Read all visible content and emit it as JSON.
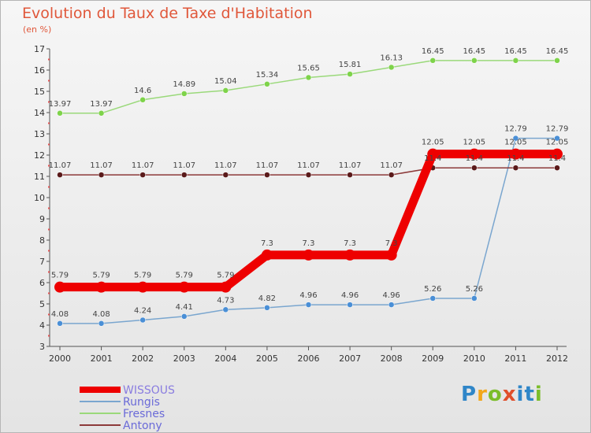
{
  "title": "Evolution du Taux de Taxe d'Habitation",
  "subtitle": "(en %)",
  "brand": {
    "text": "Proxiti",
    "colors": [
      "#2f86c8",
      "#f2a71b",
      "#7bbd2a",
      "#e04f2b",
      "#2f86c8",
      "#2f86c8",
      "#7bbd2a"
    ]
  },
  "chart_data": {
    "type": "line",
    "x": [
      "2000",
      "2001",
      "2002",
      "2003",
      "2004",
      "2005",
      "2006",
      "2007",
      "2008",
      "2009",
      "2010",
      "2011",
      "2012"
    ],
    "ylim": [
      3,
      17
    ],
    "yticks": [
      "3",
      "4",
      "5",
      "6",
      "7",
      "8",
      "9",
      "10",
      "11",
      "12",
      "13",
      "14",
      "15",
      "16",
      "17"
    ],
    "grid": false,
    "legend_position": "bottom-left",
    "series": [
      {
        "name": "WISSOUS",
        "color": "#ee0000",
        "width": 11,
        "marker": 7,
        "values": [
          5.79,
          5.79,
          5.79,
          5.79,
          5.79,
          7.3,
          7.3,
          7.3,
          7.3,
          12.05,
          12.05,
          12.05,
          12.05
        ],
        "labels": [
          "5.79",
          "5.79",
          "5.79",
          "5.79",
          "5.79",
          "7.3",
          "7.3",
          "7.3",
          "7.3",
          "12.05",
          "12.05",
          "12.05",
          "12.05"
        ]
      },
      {
        "name": "Rungis",
        "color": "#7aa6cf",
        "width": 1.5,
        "marker": 3.5,
        "marker_fill": "#4a8fd6",
        "values": [
          4.08,
          4.08,
          4.24,
          4.41,
          4.73,
          4.82,
          4.96,
          4.96,
          4.96,
          5.26,
          5.26,
          12.79,
          12.79
        ],
        "labels": [
          "4.08",
          "4.08",
          "4.24",
          "4.41",
          "4.73",
          "4.82",
          "4.96",
          "4.96",
          "4.96",
          "5.26",
          "5.26",
          "12.79",
          "12.79"
        ]
      },
      {
        "name": "Fresnes",
        "color": "#9ad97a",
        "width": 1.5,
        "marker": 3.5,
        "marker_fill": "#7ed34a",
        "values": [
          13.97,
          13.97,
          14.6,
          14.89,
          15.04,
          15.34,
          15.65,
          15.81,
          16.13,
          16.45,
          16.45,
          16.45,
          16.45
        ],
        "labels": [
          "13.97",
          "13.97",
          "14.6",
          "14.89",
          "15.04",
          "15.34",
          "15.65",
          "15.81",
          "16.13",
          "16.45",
          "16.45",
          "16.45",
          "16.45"
        ]
      },
      {
        "name": "Antony",
        "color": "#8c3a3a",
        "width": 1.5,
        "marker": 3.5,
        "marker_fill": "#5a1a1a",
        "values": [
          11.07,
          11.07,
          11.07,
          11.07,
          11.07,
          11.07,
          11.07,
          11.07,
          11.07,
          11.4,
          11.4,
          11.4,
          11.4
        ],
        "labels": [
          "11.07",
          "11.07",
          "11.07",
          "11.07",
          "11.07",
          "11.07",
          "11.07",
          "11.07",
          "11.07",
          "11.4",
          "11.4",
          "11.4",
          "11.4"
        ]
      }
    ]
  }
}
